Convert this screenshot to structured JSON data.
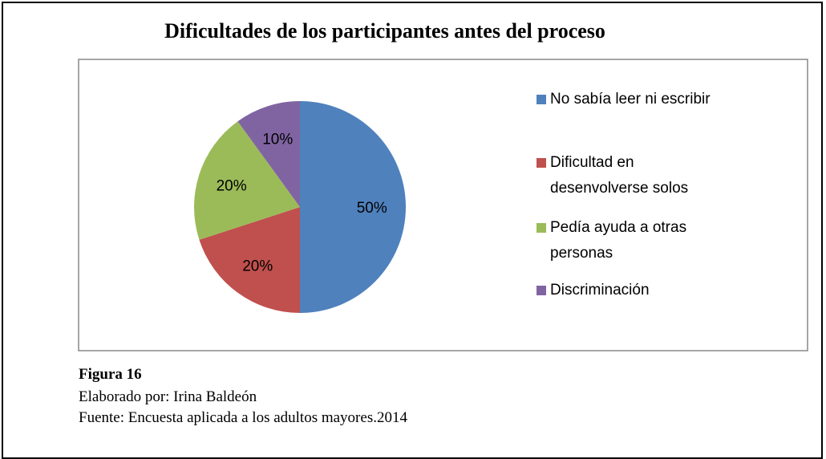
{
  "chart_data": {
    "type": "pie",
    "title": "Dificultades de los participantes antes del proceso",
    "categories": [
      "No sabía leer ni escribir",
      "Dificultad en desenvolverse solos",
      "Pedía ayuda a otras personas",
      "Discriminación"
    ],
    "values": [
      50,
      20,
      20,
      10
    ],
    "value_labels": [
      "50%",
      "20%",
      "20%",
      "10%"
    ],
    "colors": [
      "#4f81bd",
      "#c0504d",
      "#9bbb59",
      "#8064a2"
    ]
  },
  "caption": {
    "figure": "Figura 16",
    "author": "Elaborado por: Irina Baldeón",
    "source": "Fuente: Encuesta aplicada a los adultos mayores.2014"
  }
}
